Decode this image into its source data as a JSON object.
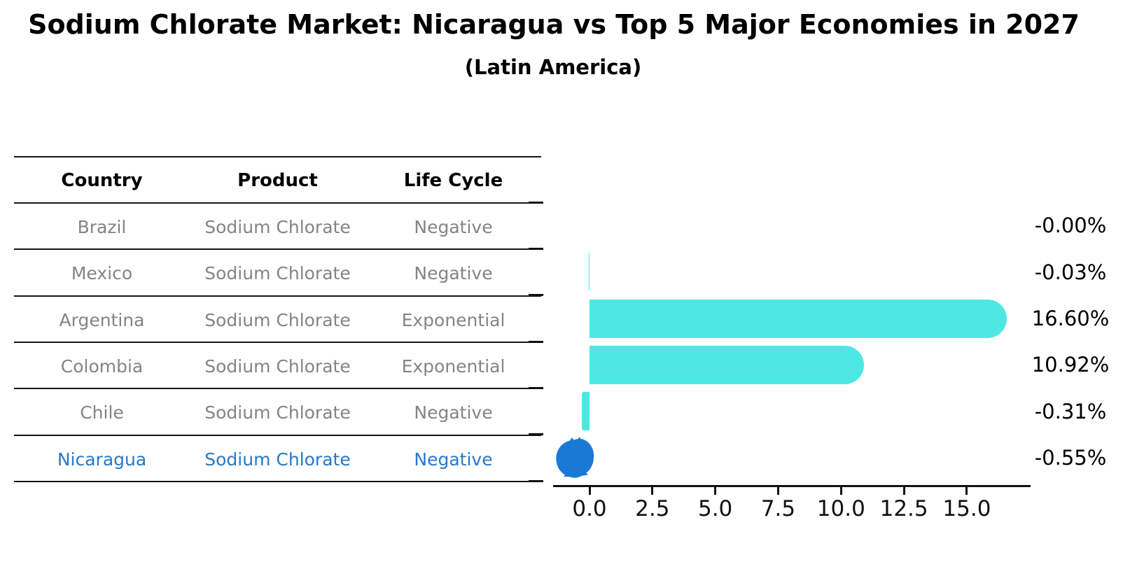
{
  "title": "Sodium Chlorate Market: Nicaragua vs Top 5 Major Economies in 2027",
  "subtitle": "(Latin America)",
  "table": {
    "columns": [
      "Country",
      "Product",
      "Life Cycle"
    ],
    "rows": [
      {
        "country": "Brazil",
        "product": "Sodium Chlorate",
        "life_cycle": "Negative",
        "highlight": false
      },
      {
        "country": "Mexico",
        "product": "Sodium Chlorate",
        "life_cycle": "Negative",
        "highlight": false
      },
      {
        "country": "Argentina",
        "product": "Sodium Chlorate",
        "life_cycle": "Exponential",
        "highlight": false
      },
      {
        "country": "Colombia",
        "product": "Sodium Chlorate",
        "life_cycle": "Exponential",
        "highlight": false
      },
      {
        "country": "Chile",
        "product": "Sodium Chlorate",
        "life_cycle": "Negative",
        "highlight": false
      },
      {
        "country": "Nicaragua",
        "product": "Sodium Chlorate",
        "life_cycle": "Negative",
        "highlight": true
      }
    ]
  },
  "chart_data": {
    "type": "bar",
    "orientation": "horizontal",
    "title": "Sodium Chlorate Market: Nicaragua vs Top 5 Major Economies in 2027",
    "subtitle": "(Latin America)",
    "categories": [
      "Brazil",
      "Mexico",
      "Argentina",
      "Colombia",
      "Chile",
      "Nicaragua"
    ],
    "values": [
      -0.0,
      -0.03,
      16.6,
      10.92,
      -0.31,
      -0.55
    ],
    "value_labels": [
      "-0.00%",
      "-0.03%",
      "16.60%",
      "10.92%",
      "-0.31%",
      "-0.55%"
    ],
    "marker_styles": [
      "bar",
      "bar",
      "bar",
      "bar",
      "bar",
      "dot"
    ],
    "highlight_category": "Nicaragua",
    "x_ticks": [
      0.0,
      2.5,
      5.0,
      7.5,
      10.0,
      12.5,
      15.0
    ],
    "x_tick_labels": [
      "0.0",
      "2.5",
      "5.0",
      "7.5",
      "10.0",
      "12.5",
      "15.0"
    ],
    "xlim": [
      -1.45,
      17.55
    ],
    "grid": false,
    "legend": false,
    "units": "percent"
  },
  "colors": {
    "bar": "#4DE8E4",
    "dot": "#1B79D6",
    "highlight_text": "#2878C8",
    "table_text": "#848484",
    "text": "#000000"
  }
}
